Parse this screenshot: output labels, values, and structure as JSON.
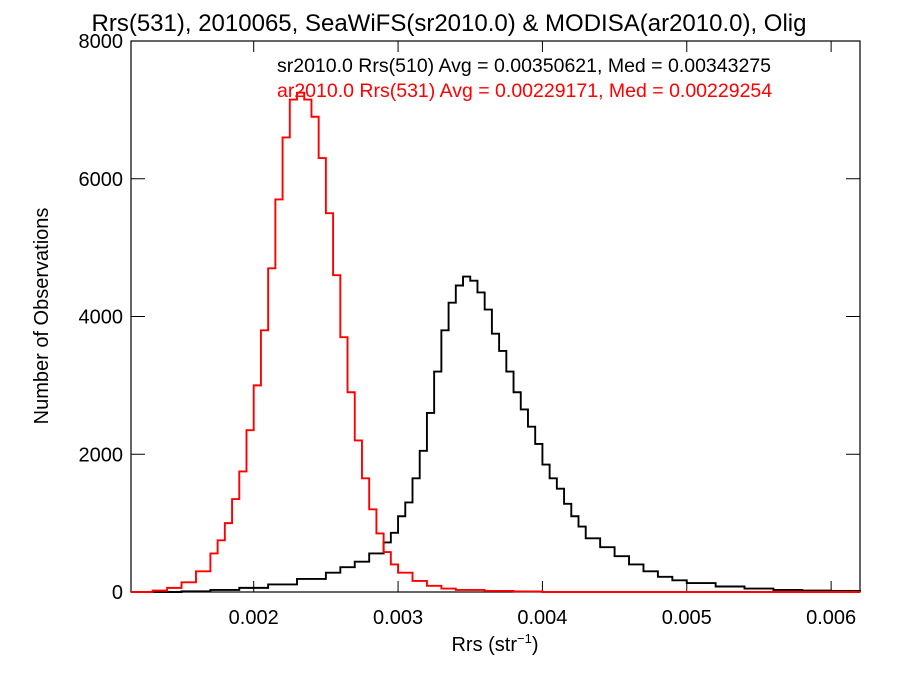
{
  "chart_data": {
    "type": "histogram",
    "title": "Rrs(531), 2010065, SeaWiFS(sr2010.0) & MODISA(ar2010.0), Olig",
    "xlabel_text": "Rrs (str",
    "xlabel_sup": "−1",
    "xlabel_close": ")",
    "ylabel": "Number of Observations",
    "xlim": [
      0.00115,
      0.0062
    ],
    "ylim": [
      0,
      8000
    ],
    "x_ticks": [
      {
        "value": 0.002,
        "label": "0.002"
      },
      {
        "value": 0.003,
        "label": "0.003"
      },
      {
        "value": 0.004,
        "label": "0.004"
      },
      {
        "value": 0.005,
        "label": "0.005"
      },
      {
        "value": 0.006,
        "label": "0.006"
      }
    ],
    "y_ticks": [
      {
        "value": 0,
        "label": "0"
      },
      {
        "value": 2000,
        "label": "2000"
      },
      {
        "value": 4000,
        "label": "4000"
      },
      {
        "value": 6000,
        "label": "6000"
      },
      {
        "value": 8000,
        "label": "8000"
      }
    ],
    "legend": [
      {
        "text": "sr2010.0 Rrs(510) Avg = 0.00350621, Med = 0.00343275",
        "color": "#000000"
      },
      {
        "text": "ar2010.0 Rrs(531) Avg = 0.00229171, Med = 0.00229254",
        "color": "#ff0000"
      }
    ],
    "series": [
      {
        "color": "#000000",
        "points": [
          [
            0.00115,
            0
          ],
          [
            0.0013,
            0
          ],
          [
            0.0015,
            10
          ],
          [
            0.0017,
            30
          ],
          [
            0.0019,
            60
          ],
          [
            0.0021,
            110
          ],
          [
            0.0023,
            190
          ],
          [
            0.0025,
            280
          ],
          [
            0.0026,
            360
          ],
          [
            0.0027,
            440
          ],
          [
            0.0028,
            560
          ],
          [
            0.0029,
            720
          ],
          [
            0.00295,
            860
          ],
          [
            0.003,
            1100
          ],
          [
            0.00305,
            1300
          ],
          [
            0.0031,
            1650
          ],
          [
            0.00315,
            2050
          ],
          [
            0.0032,
            2600
          ],
          [
            0.00325,
            3200
          ],
          [
            0.0033,
            3800
          ],
          [
            0.00335,
            4200
          ],
          [
            0.0034,
            4450
          ],
          [
            0.00345,
            4580
          ],
          [
            0.0035,
            4520
          ],
          [
            0.00355,
            4350
          ],
          [
            0.0036,
            4100
          ],
          [
            0.00365,
            3750
          ],
          [
            0.0037,
            3500
          ],
          [
            0.00375,
            3200
          ],
          [
            0.0038,
            2900
          ],
          [
            0.00385,
            2650
          ],
          [
            0.0039,
            2400
          ],
          [
            0.00395,
            2150
          ],
          [
            0.004,
            1850
          ],
          [
            0.00405,
            1650
          ],
          [
            0.0041,
            1500
          ],
          [
            0.00415,
            1280
          ],
          [
            0.0042,
            1100
          ],
          [
            0.00425,
            950
          ],
          [
            0.0043,
            780
          ],
          [
            0.0044,
            650
          ],
          [
            0.0045,
            520
          ],
          [
            0.0046,
            400
          ],
          [
            0.0047,
            300
          ],
          [
            0.0048,
            220
          ],
          [
            0.0049,
            170
          ],
          [
            0.005,
            130
          ],
          [
            0.0052,
            80
          ],
          [
            0.0054,
            50
          ],
          [
            0.0056,
            30
          ],
          [
            0.0058,
            20
          ],
          [
            0.006,
            15
          ],
          [
            0.0062,
            10
          ]
        ]
      },
      {
        "color": "#ff0000",
        "points": [
          [
            0.00115,
            0
          ],
          [
            0.0013,
            20
          ],
          [
            0.0014,
            60
          ],
          [
            0.0015,
            140
          ],
          [
            0.0016,
            300
          ],
          [
            0.0017,
            560
          ],
          [
            0.00175,
            750
          ],
          [
            0.0018,
            1000
          ],
          [
            0.00185,
            1350
          ],
          [
            0.0019,
            1750
          ],
          [
            0.00195,
            2350
          ],
          [
            0.002,
            3000
          ],
          [
            0.00205,
            3800
          ],
          [
            0.0021,
            4700
          ],
          [
            0.00215,
            5700
          ],
          [
            0.0022,
            6600
          ],
          [
            0.00225,
            7150
          ],
          [
            0.0023,
            7250
          ],
          [
            0.00235,
            7150
          ],
          [
            0.0024,
            6900
          ],
          [
            0.00245,
            6300
          ],
          [
            0.0025,
            5500
          ],
          [
            0.00255,
            4600
          ],
          [
            0.0026,
            3700
          ],
          [
            0.00265,
            2900
          ],
          [
            0.0027,
            2200
          ],
          [
            0.00275,
            1650
          ],
          [
            0.0028,
            1200
          ],
          [
            0.00285,
            850
          ],
          [
            0.0029,
            580
          ],
          [
            0.00295,
            400
          ],
          [
            0.003,
            280
          ],
          [
            0.0031,
            160
          ],
          [
            0.0032,
            90
          ],
          [
            0.0033,
            50
          ],
          [
            0.0034,
            30
          ],
          [
            0.0036,
            15
          ],
          [
            0.0038,
            8
          ],
          [
            0.004,
            0
          ],
          [
            0.0062,
            0
          ]
        ]
      }
    ]
  }
}
